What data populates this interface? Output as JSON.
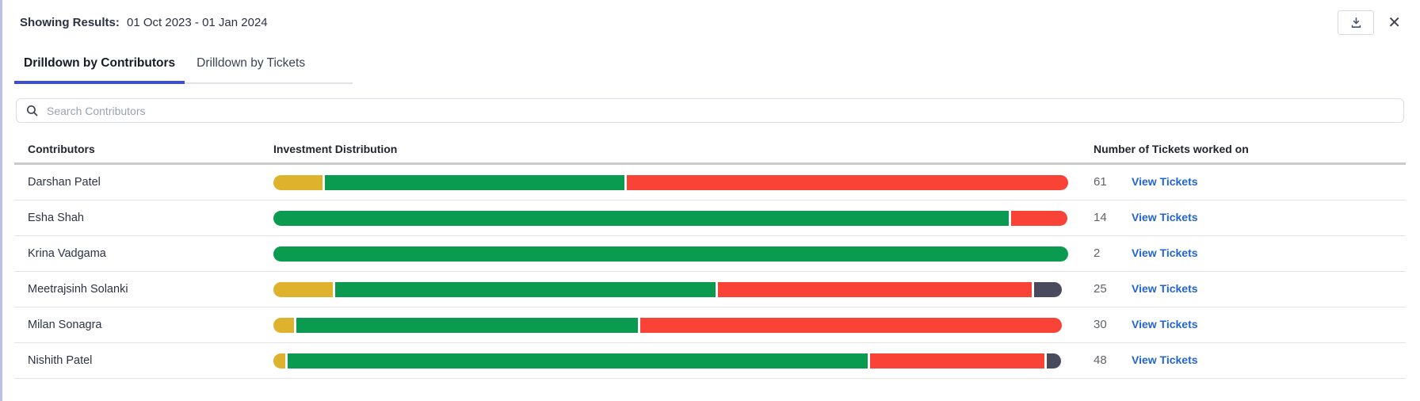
{
  "header": {
    "results_label": "Showing Results:",
    "results_range": "01 Oct 2023 - 01 Jan 2024",
    "close_glyph": "✕"
  },
  "tabs": [
    {
      "label": "Drilldown by Contributors",
      "active": true
    },
    {
      "label": "Drilldown by Tickets",
      "active": false
    }
  ],
  "search": {
    "placeholder": "Search Contributors"
  },
  "table": {
    "columns": [
      "Contributors",
      "Investment Distribution",
      "Number of Tickets worked on"
    ],
    "link_label": "View Tickets"
  },
  "colors": {
    "yellow": "#deb22d",
    "green": "#0a9b51",
    "red": "#fa4337",
    "dark": "#494a5e",
    "tab_active_underline": "#4152c8",
    "link": "#2464d1",
    "left_edge": "#b9c0e9"
  },
  "chart_data": {
    "type": "bar",
    "subtype": "horizontal_stacked_percentage",
    "title": "Investment Distribution",
    "categories": [
      "Darshan Patel",
      "Esha Shah",
      "Krina Vadgama",
      "Meetrajsinh Solanki",
      "Milan Sonagra",
      "Nishith Patel"
    ],
    "series": [
      {
        "name": "yellow",
        "color": "#deb22d",
        "values": [
          6.2,
          0,
          0,
          7.5,
          2.6,
          1.5
        ]
      },
      {
        "name": "green",
        "color": "#0a9b51",
        "values": [
          37.7,
          92.5,
          100,
          47.8,
          43.0,
          73.0
        ]
      },
      {
        "name": "red",
        "color": "#fa4337",
        "values": [
          55.5,
          7.1,
          0,
          39.5,
          53.0,
          21.9
        ]
      },
      {
        "name": "dark",
        "color": "#494a5e",
        "values": [
          0,
          0,
          0,
          3.5,
          0,
          1.8
        ]
      }
    ],
    "tickets_worked_on": [
      61,
      14,
      2,
      25,
      30,
      48
    ],
    "xlim": [
      0,
      100
    ],
    "legend": "none",
    "value_unit": "percent_of_bar_width"
  }
}
